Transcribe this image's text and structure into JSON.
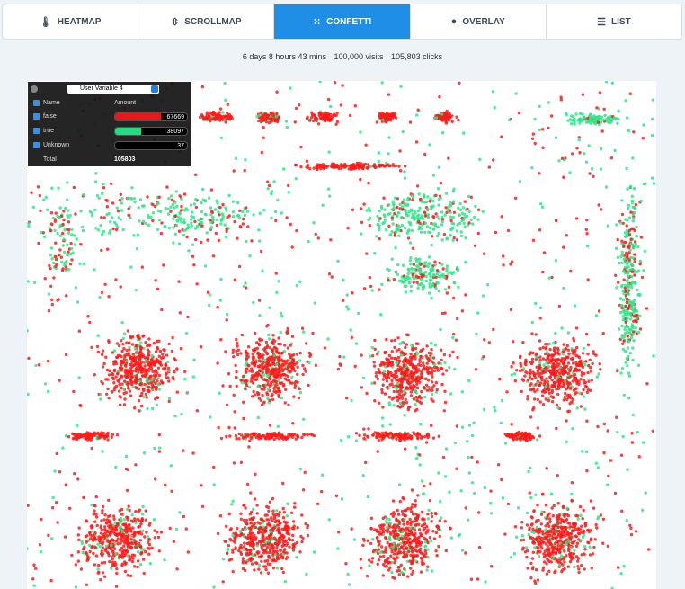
{
  "tabs": [
    "HEATMAP",
    "SCROLLMAP",
    "CONFETTI",
    "OVERLAY",
    "LIST"
  ],
  "stats": {
    "duration": "6 days 8 hours 43 mins",
    "visits": "100,000 visits",
    "clicks": "105,803 clicks"
  },
  "legend": {
    "variable": "User Variable 4",
    "columns": [
      "Name",
      "Amount"
    ],
    "rows": [
      {
        "name": "false",
        "amount": 67669,
        "color": "#e8191b"
      },
      {
        "name": "true",
        "amount": 38097,
        "color": "#22dd80"
      },
      {
        "name": "Unknown",
        "amount": 37,
        "color": "#e060e0"
      }
    ],
    "total_label": "Total",
    "total": 105803
  }
}
